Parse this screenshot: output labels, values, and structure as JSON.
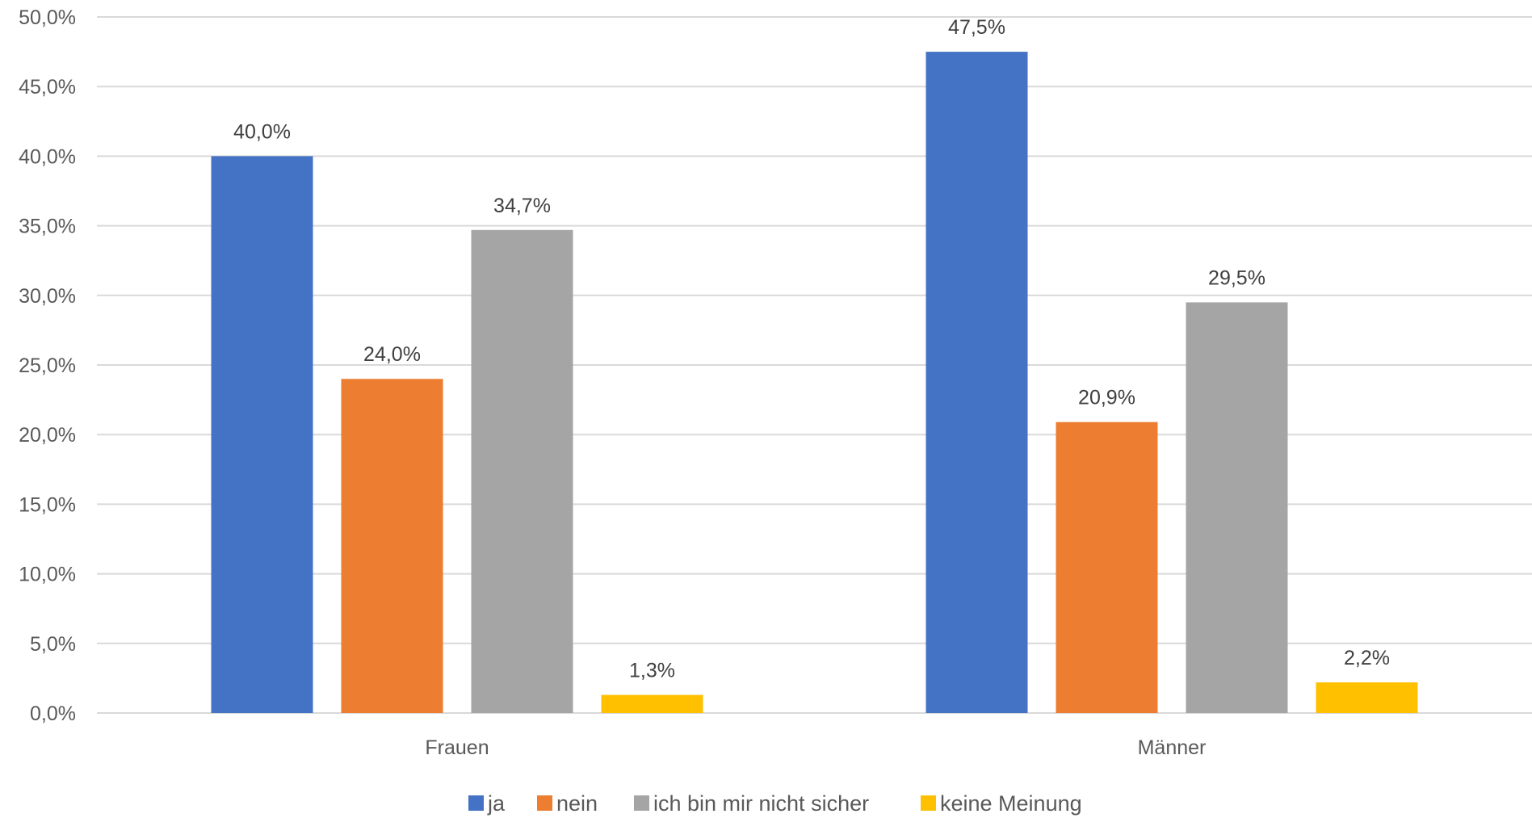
{
  "chart_data": {
    "type": "bar",
    "categories": [
      "Frauen",
      "Männer"
    ],
    "series": [
      {
        "name": "ja",
        "values": [
          40.0,
          47.5
        ],
        "labels": [
          "40,0%",
          "47,5%"
        ],
        "color": "#4472C4"
      },
      {
        "name": "nein",
        "values": [
          24.0,
          20.9
        ],
        "labels": [
          "24,0%",
          "20,9%"
        ],
        "color": "#ED7D31"
      },
      {
        "name": "ich bin mir nicht sicher",
        "values": [
          34.7,
          29.5
        ],
        "labels": [
          "34,7%",
          "29,5%"
        ],
        "color": "#A5A5A5"
      },
      {
        "name": "keine Meinung",
        "values": [
          1.3,
          2.2
        ],
        "labels": [
          "1,3%",
          "2,2%"
        ],
        "color": "#FFC000"
      }
    ],
    "ylim": [
      0,
      50
    ],
    "yticks": [
      0,
      5,
      10,
      15,
      20,
      25,
      30,
      35,
      40,
      45,
      50
    ],
    "ytick_labels": [
      "0,0%",
      "5,0%",
      "10,0%",
      "15,0%",
      "20,0%",
      "25,0%",
      "30,0%",
      "35,0%",
      "40,0%",
      "45,0%",
      "50,0%"
    ],
    "title": "",
    "xlabel": "",
    "ylabel": "",
    "grid": true,
    "legend_position": "bottom",
    "gridline_color": "#D9D9D9"
  }
}
